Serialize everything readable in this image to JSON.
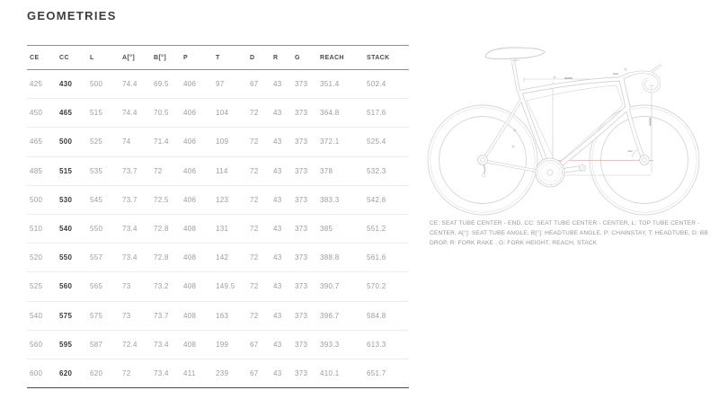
{
  "page": {
    "title": "GEOMETRIES"
  },
  "table": {
    "columns": [
      "CE",
      "CC",
      "L",
      "A[°]",
      "B[°]",
      "P",
      "T",
      "D",
      "R",
      "G",
      "REACH",
      "STACK"
    ],
    "rows": [
      [
        "425",
        "430",
        "500",
        "74.4",
        "69.5",
        "406",
        "97",
        "67",
        "43",
        "373",
        "351.4",
        "502.4"
      ],
      [
        "450",
        "465",
        "515",
        "74.4",
        "70.5",
        "406",
        "104",
        "72",
        "43",
        "373",
        "364.8",
        "517.6"
      ],
      [
        "465",
        "500",
        "525",
        "74",
        "71.4",
        "406",
        "109",
        "72",
        "43",
        "373",
        "372.1",
        "525.4"
      ],
      [
        "485",
        "515",
        "535",
        "73.7",
        "72",
        "406",
        "114",
        "72",
        "43",
        "373",
        "378",
        "532.3"
      ],
      [
        "500",
        "530",
        "545",
        "73.7",
        "72.5",
        "406",
        "123",
        "72",
        "43",
        "373",
        "383.3",
        "542.6"
      ],
      [
        "510",
        "540",
        "550",
        "73.4",
        "72.8",
        "408",
        "131",
        "72",
        "43",
        "373",
        "385",
        "551.2"
      ],
      [
        "520",
        "550",
        "557",
        "73.4",
        "72.8",
        "408",
        "142",
        "72",
        "43",
        "373",
        "388.8",
        "561.6"
      ],
      [
        "525",
        "560",
        "565",
        "73",
        "73.2",
        "408",
        "149.5",
        "72",
        "43",
        "373",
        "390.7",
        "570.2"
      ],
      [
        "540",
        "575",
        "575",
        "73",
        "73.7",
        "408",
        "163",
        "72",
        "43",
        "373",
        "396.7",
        "584.8"
      ],
      [
        "560",
        "595",
        "587",
        "72.4",
        "73.4",
        "408",
        "199",
        "67",
        "43",
        "373",
        "393.3",
        "613.3"
      ],
      [
        "600",
        "620",
        "620",
        "72",
        "73.4",
        "411",
        "239",
        "67",
        "43",
        "373",
        "410.1",
        "651.7"
      ]
    ],
    "bold_column_index": 1
  },
  "legend": {
    "text": "CE: SEAT TUBE CENTER - END, CC: SEAT TUBE CENTER - CENTER, L: TOP TUBE CENTER - CENTER, A[°]: SEAT TUBE ANGLE, B[°]: HEADTUBE ANGLE, P: CHAINSTAY, T: HEADTUBE, D: BB DROP, R: FORK RAKE , G: FORK HEIGHT, REACH, STACK"
  },
  "diagram": {
    "description": "technical line drawing of road bike with geometry dimension lines",
    "line_color": "#d2d2d2",
    "dimension_line_color": "#c9c9c9",
    "accent_dimension_color": "#e2b0b0"
  },
  "colors": {
    "background": "#ffffff",
    "title_text": "#3d3d3d",
    "header_text": "#4a4a4a",
    "cell_text": "#9c9c9c",
    "bold_cell_text": "#3a3a3a",
    "table_top_border": "#8f8f8f",
    "row_divider": "#ececec",
    "table_bottom_border": "#4a4a4a",
    "legend_text": "#979797"
  }
}
